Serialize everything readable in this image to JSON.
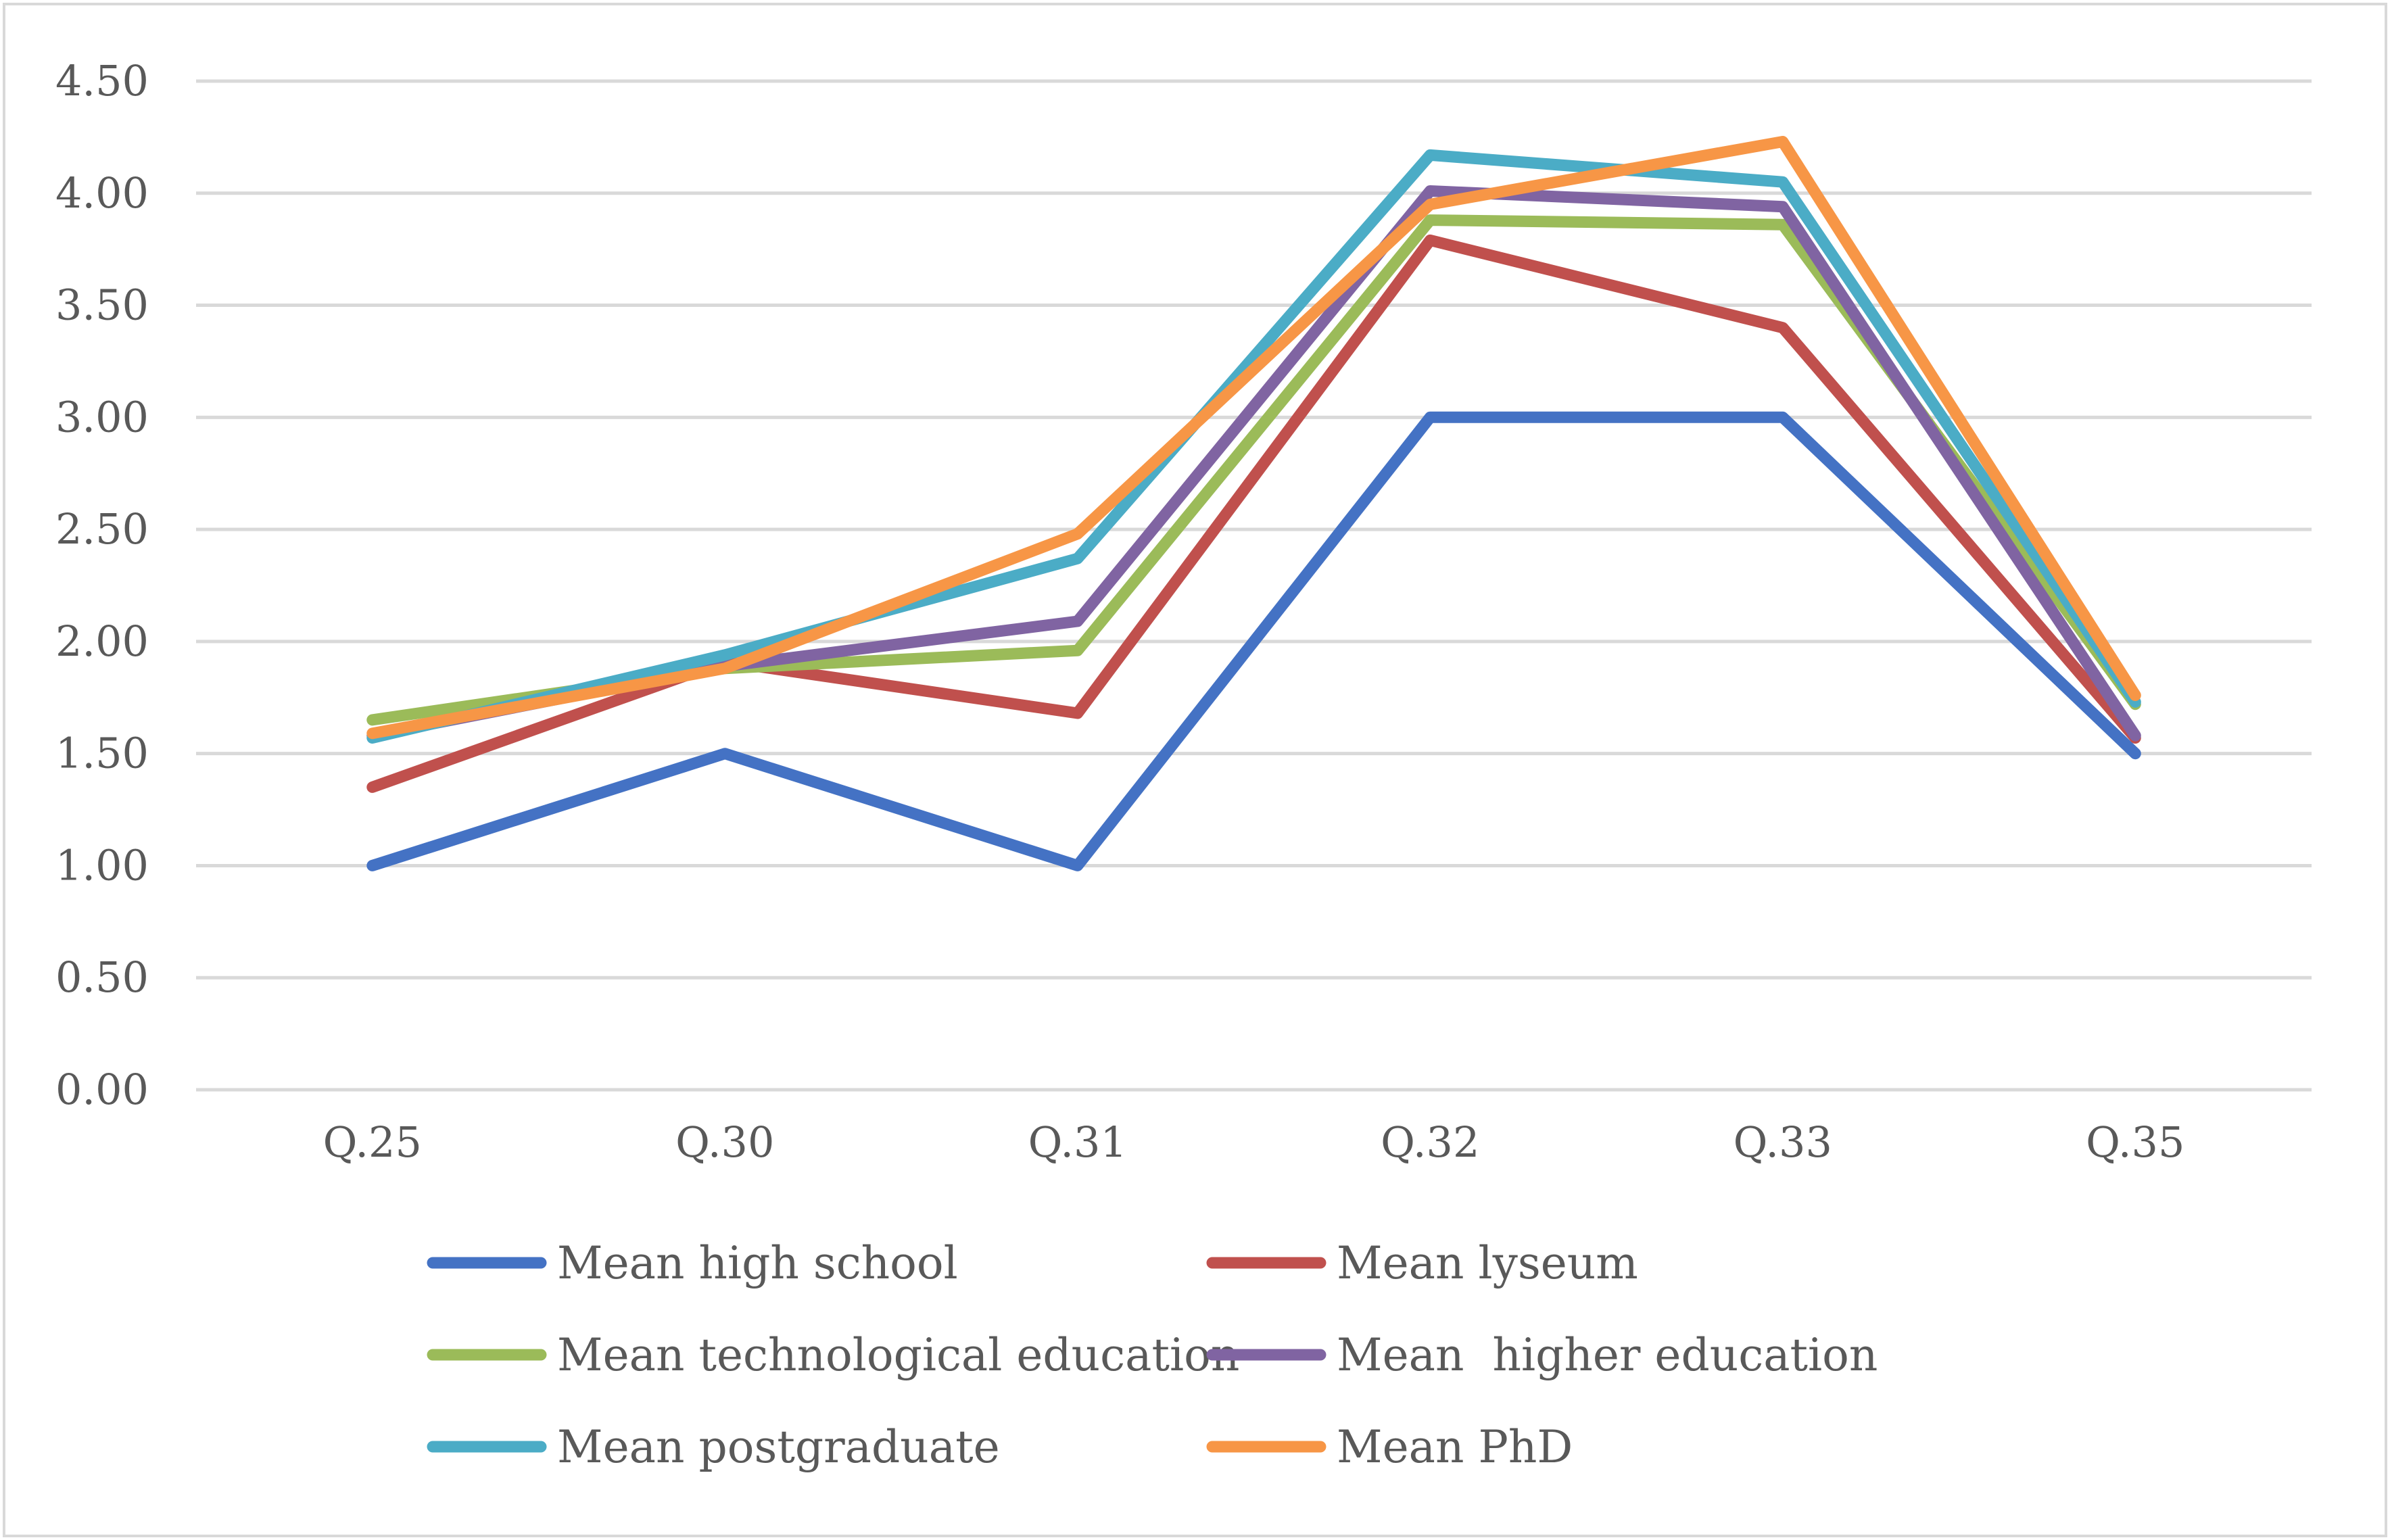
{
  "chart_data": {
    "type": "line",
    "title": "",
    "xlabel": "",
    "ylabel": "",
    "categories": [
      "Q.25",
      "Q.30",
      "Q.31",
      "Q.32",
      "Q.33",
      "Q.35"
    ],
    "ylim": [
      0,
      4.5
    ],
    "yticks": [
      0,
      0.5,
      1,
      1.5,
      2,
      2.5,
      3,
      3.5,
      4,
      4.5
    ],
    "ytick_labels": [
      "0.00",
      "0.50",
      "1.00",
      "1.50",
      "2.00",
      "2.50",
      "3.00",
      "3.50",
      "4.00",
      "4.50"
    ],
    "grid": true,
    "legend_position": "bottom",
    "series": [
      {
        "name": "Mean high school",
        "color": "#4472c4",
        "values": [
          1.0,
          1.5,
          1.0,
          3.0,
          3.0,
          1.5
        ]
      },
      {
        "name": "Mean lyseum",
        "color": "#c0504d",
        "values": [
          1.35,
          1.91,
          1.68,
          3.79,
          3.4,
          1.57
        ]
      },
      {
        "name": "Mean technological education",
        "color": "#9bbb59",
        "values": [
          1.65,
          1.88,
          1.96,
          3.88,
          3.86,
          1.72
        ]
      },
      {
        "name": "Mean  higher education",
        "color": "#8064a2",
        "values": [
          1.58,
          1.89,
          2.09,
          4.01,
          3.94,
          1.58
        ]
      },
      {
        "name": "Mean postgraduate",
        "color": "#4bacc6",
        "values": [
          1.57,
          1.94,
          2.37,
          4.17,
          4.05,
          1.73
        ]
      },
      {
        "name": "Mean PhD",
        "color": "#f79646",
        "values": [
          1.59,
          1.88,
          2.48,
          3.95,
          4.23,
          1.76
        ]
      }
    ]
  }
}
